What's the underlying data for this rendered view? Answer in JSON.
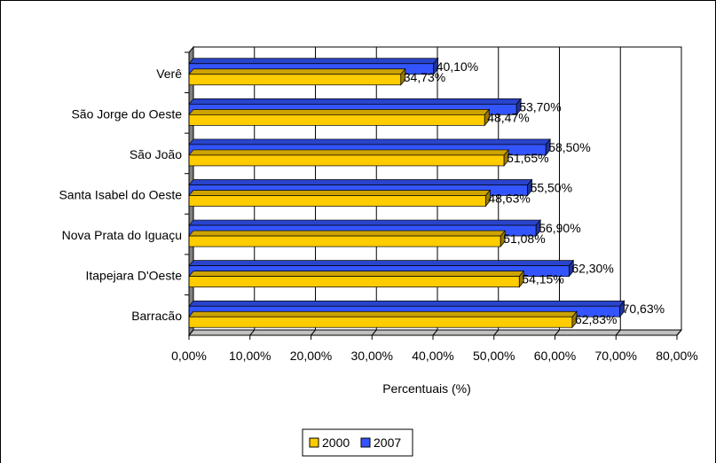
{
  "chart_data": {
    "type": "bar",
    "orientation": "horizontal",
    "style": "3d",
    "categories": [
      "Verê",
      "São Jorge do Oeste",
      "São João",
      "Santa Isabel do Oeste",
      "Nova Prata do Iguaçu",
      "Itapejara  D'Oeste",
      "Barracão"
    ],
    "series": [
      {
        "name": "2007",
        "color": "#3355ff",
        "values": [
          40.1,
          53.7,
          58.5,
          55.5,
          56.9,
          62.3,
          70.63
        ],
        "labels": [
          "40,10%",
          "53,70%",
          "58,50%",
          "55,50%",
          "56,90%",
          "62,30%",
          "70,63%"
        ]
      },
      {
        "name": "2000",
        "color": "#ffcc00",
        "values": [
          34.73,
          48.47,
          51.65,
          48.63,
          51.08,
          54.15,
          62.83
        ],
        "labels": [
          "34,73%",
          "48,47%",
          "51,65%",
          "48,63%",
          "51,08%",
          "54,15%",
          "62,83%"
        ]
      }
    ],
    "xlim": [
      0,
      80
    ],
    "xticks": [
      0,
      10,
      20,
      30,
      40,
      50,
      60,
      70,
      80
    ],
    "xtick_labels": [
      "0,00%",
      "10,00%",
      "20,00%",
      "30,00%",
      "40,00%",
      "50,00%",
      "60,00%",
      "70,00%",
      "80,00%"
    ],
    "xlabel": "Percentuais (%)",
    "ylabel": "",
    "title": "",
    "grid": true,
    "legend_position": "bottom",
    "legend": [
      {
        "label": "2000",
        "color": "#ffcc00"
      },
      {
        "label": "2007",
        "color": "#3355ff"
      }
    ]
  }
}
